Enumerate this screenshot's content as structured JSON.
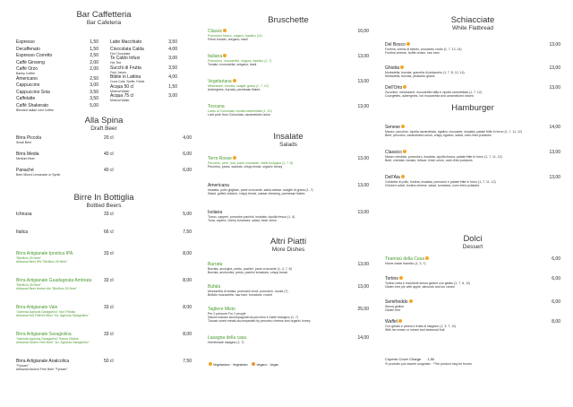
{
  "bar": {
    "title": "Bar Caffetteria",
    "subtitle": "Bar Cafeteria",
    "left": [
      {
        "name": "Espresso",
        "price": "1,50",
        "sub": ""
      },
      {
        "name": "Decaffenato",
        "price": "1,50",
        "sub": ""
      },
      {
        "name": "Espresso Corretto",
        "price": "2,50",
        "sub": ""
      },
      {
        "name": "Caffè Ginseng",
        "price": "2,00",
        "sub": ""
      },
      {
        "name": "Caffè Orzo",
        "price": "2,00",
        "sub": "Barley Coffee"
      },
      {
        "name": "Americano",
        "price": "2,50",
        "sub": ""
      },
      {
        "name": "Cappuccino",
        "price": "3,00",
        "sub": ""
      },
      {
        "name": "Cappuccino Soia",
        "price": "3,50",
        "sub": ""
      },
      {
        "name": "Caffelatte",
        "price": "3,50",
        "sub": ""
      },
      {
        "name": "Caffè Shakerato",
        "price": "5,00",
        "sub": "Blended Italian Iced Coffee"
      }
    ],
    "right": [
      {
        "name": "Latte Macchiato",
        "price": "3,50",
        "sub": ""
      },
      {
        "name": "Cioccolata Calda",
        "price": "4,00",
        "sub": "Hot Chocolate"
      },
      {
        "name": "Te Caldo Infusi",
        "price": "3,00",
        "sub": "Hot Tea"
      },
      {
        "name": "Succhi di Frutta",
        "price": "3,50",
        "sub": "Fruit Juices"
      },
      {
        "name": "Bibite in Lattina",
        "price": "4,00",
        "sub": "Coca Cola, Sprite, Fanta"
      },
      {
        "name": "Acqua 50 cl",
        "price": "1,50",
        "sub": "Mineral Water"
      },
      {
        "name": "Acqua 75 cl",
        "price": "3,00",
        "sub": "Mineral Water"
      }
    ]
  },
  "draft": {
    "title": "Alla Spina",
    "subtitle": "Draft Beer",
    "items": [
      {
        "name": "Birra Piccola",
        "sub": "Small Beer",
        "qty": "20 cl",
        "price": "4,00"
      },
      {
        "name": "Birra Media",
        "sub": "Medium Beer",
        "qty": "40 cl",
        "price": "6,00"
      },
      {
        "name": "Panaché",
        "sub": "Beer Mixed Lemonade or Sprite",
        "qty": "40 cl",
        "price": "6,00"
      }
    ]
  },
  "bottled": {
    "title": "Birre In Bottiglia",
    "subtitle": "Bottled Beers",
    "items": [
      {
        "name": "Ichnusa",
        "lines": [],
        "qty": "33 cl",
        "price": "5,00",
        "green": false
      },
      {
        "name": "Italica",
        "lines": [],
        "qty": "66 cl",
        "price": "7,50",
        "green": false
      },
      {
        "name": "Birra Artigianale Ipnotica IPA",
        "lines": [
          "\"Birrificio 26 Nere\"",
          "Artisanal Beer IPA \"Birrificio 26 Nere\""
        ],
        "qty": "33 cl",
        "price": "8,00",
        "green": true
      },
      {
        "name": "Birra Artigianale Guadagnata Ambrata",
        "lines": [
          "\"Birrificio 26 Nere\"",
          "Artisanal Beer Amber Ale \"Birrificio 26 Nere\""
        ],
        "qty": "33 cl",
        "price": "8,00",
        "green": true
      },
      {
        "name": "Birra Artigianale Vale",
        "lines": [
          "\"Azienda Agricola Saragiolino\" Non Filtrata",
          "Artisanal Not Filtered Beer \"Az. Agricola Saragiolino\""
        ],
        "qty": "33 cl",
        "price": "8,00",
        "green": true
      },
      {
        "name": "Birra Artigianale Saragiolina",
        "lines": [
          "\"Azienda Agricola Saragiolino\" Senza Glutine",
          "Artisanal Gluten Free Beer \"Az. Agricola Saragiolino\""
        ],
        "qty": "33 cl",
        "price": "8,00",
        "green": true
      },
      {
        "name": "Birra Artigianale Analcolica",
        "lines": [
          "\"Fyrsaer\"",
          "Artisanal Alcohol Free Beer \"Fyrsaer\""
        ],
        "qty": "50 cl",
        "price": "7,50",
        "green": false
      }
    ]
  },
  "bruschette": {
    "title": "Bruschette",
    "items": [
      {
        "name": "Classic",
        "it": "Pomodoro fresco, origano, basilico (11)",
        "en": "Fresh tomato, oregano, basil",
        "price": "10,00"
      },
      {
        "name": "Italiana",
        "it": "Pomodoro, mozzarella, origano, basilico (1, 7)",
        "en": "Tomato, mozzarella, oregano, basil",
        "price": "13,00"
      },
      {
        "name": "Vegetariana",
        "it": "Melanzane, burrata, scaglie grana (1, 7, 12)",
        "en": "Aubergines, burrata, parmesan flakes",
        "price": "13,00"
      },
      {
        "name": "Toscana",
        "it": "Lardo di Colonnata, cipolla caramellata (1, 10)",
        "en": "Lard pork from Colonnata, caramelized onion",
        "price": "13,00"
      }
    ]
  },
  "insalate": {
    "title": "Insalate",
    "subtitle": "Salads",
    "items": [
      {
        "name": "Terre Rosse",
        "it": "Pecorino, pere, noci, pane croccante, miele biologico (1, 7, 8)",
        "en": "Pecorino, pears, walnuts, crispy bread, organic honey",
        "price": "13,00",
        "green": true
      },
      {
        "name": "Americana",
        "it": "Insalata, pollo grigliato, pane croccante, salsa caesar, scaglie di grana (1, 7)",
        "en": "Salad, grilled chicken, crispy bread, caesar dressing, parmesan flakes",
        "price": "13,00",
        "green": false
      },
      {
        "name": "Isolana",
        "it": "Tonno, capperi, pomodori pachini, insalata, cipolla fresca (1, 4)",
        "en": "Tuna, capers, cherry tomatoes, salad, fresh onion",
        "price": "13,00",
        "green": false
      }
    ]
  },
  "piatti": {
    "title": "Altri Piatti",
    "subtitle": "More Dishes",
    "items": [
      {
        "name": "Burrata",
        "lines": [
          "Burrata, acciughe, pesto, pachini, pane croccante (1, 4, 7, 8)",
          "Burrata, anchovies, pesto, pachini tomatoes, crispy bread"
        ],
        "price": "13,00",
        "green": true
      },
      {
        "name": "Bufala",
        "lines": [
          "Mozzarella di bufala, pomodori crudi, pomodori, rucola (7)",
          "Buffalo mozzarella, raw ham, tomatoes, rocket"
        ],
        "price": "13,00",
        "green": true
      },
      {
        "name": "Tagliere Misto",
        "lines": [
          "Per 2 persone For 2 people",
          "Salumi toscani accompagnati da pecorino e miele biologico (1, 7)",
          "Tuscan cured meats accompanied by pecorino cheese and organic honey"
        ],
        "price": "25,00",
        "green": true
      },
      {
        "name": "Lasagna della casa",
        "lines": [
          "Homemade lasagna (1, 7)"
        ],
        "price": "14,00",
        "green": true
      }
    ]
  },
  "legend": {
    "vegetarian": "Vegetariano · Vegetarian",
    "vegan": "Vegano · Vegan"
  },
  "schiacciate": {
    "title": "Schiacciate",
    "subtitle": "White Flatbread",
    "items": [
      {
        "name": "Del Bosco",
        "it": "Fontina, crema di tartufo, prosciutto crudo (1, 7, 12, 14)",
        "en": "Fontina cheese, truffle cream, raw ham",
        "price": "13,00"
      },
      {
        "name": "Ghiotta",
        "it": "Mortadella, burrata, granella di pistacchio (1, 7, 8, 12, 14)",
        "en": "Mortadella, burrata, pistachio grains",
        "price": "13,00"
      },
      {
        "name": "Dell'Orto",
        "it": "Zucchine, melanzane, mozzarella stilla e cipolla caramellata (1, 7, 12)",
        "en": "Courgettes, aubergines, hot mozzarella and caramelized onions",
        "price": "13,00"
      }
    ]
  },
  "hamburger": {
    "title": "Hamburger",
    "items": [
      {
        "name": "Senese",
        "it": "Manzo, pecorino, cipolla caramellata, rigatino croccante, insalata, patate fritte in forno (1, 7, 11, 12)",
        "en": "Beef, pecorino, caramelized onion, crispy rigatino, salad, oven-fried potatoes",
        "price": "14,00"
      },
      {
        "name": "Classico",
        "it": "Manzo cheddar, pomodoro, insalata, cipolla fresca, patate fritte in forno (1, 7, 11, 12)",
        "en": "Beef, cheddar, tomato, lettuce, fresh onion, oven-fried potatoes",
        "price": "13,00"
      },
      {
        "name": "Dell'Aia",
        "it": "Cotoletta di pollo, fontina, insalata, pomodori e patate fritte in forno (1, 7, 11, 12)",
        "en": "Chicken cutlet, fontina cheese, salad, tomatoes, oven-fried potatoes",
        "price": "13,00"
      }
    ]
  },
  "dolci": {
    "title": "Dolci",
    "subtitle": "Dessert",
    "items": [
      {
        "name": "Tiramisù della Casa",
        "lines": [
          "Home-made tiramisù (1, 3, 7)"
        ],
        "price": "6,00",
        "green": true
      },
      {
        "name": "Tortino",
        "lines": [
          "Tortino mela e mandorle senza glutine con gelato (1, 7, 8, 12)",
          "Gluten free pie with apple, almonds and ice cream"
        ],
        "price": "6,00",
        "green": false
      },
      {
        "name": "Semifreddo",
        "lines": [
          "Senza glutine",
          "Gluten free"
        ],
        "price": "6,00",
        "green": false
      },
      {
        "name": "Waffel",
        "lines": [
          "Con gelato e panna e frutta di stagione (1, 3, 7, 12)",
          "With ice cream or cream and seasonal fruit"
        ],
        "price": "8,00",
        "green": false
      }
    ],
    "cover": "Coperto Cover Charge",
    "cover_price": "1,50",
    "frozen": "*Il prodotto può essere surgelato · *The product may be frozen."
  }
}
